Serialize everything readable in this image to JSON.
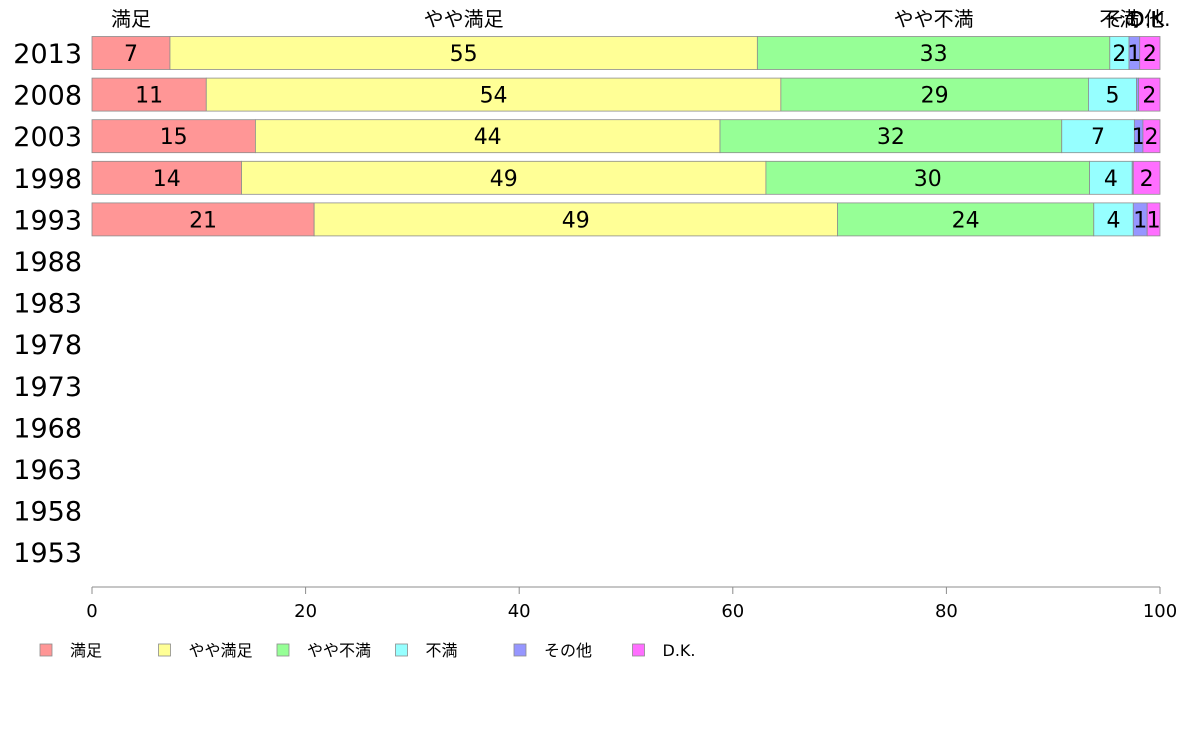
{
  "chart_data": {
    "type": "bar",
    "orientation": "horizontal",
    "stacked": true,
    "title": "",
    "xlabel": "",
    "ylabel": "",
    "xlim": [
      0,
      100
    ],
    "x_ticks": [
      "0",
      "20",
      "40",
      "60",
      "80",
      "100"
    ],
    "categories": [
      "2013",
      "2008",
      "2003",
      "1998",
      "1993",
      "1988",
      "1983",
      "1978",
      "1973",
      "1968",
      "1963",
      "1958",
      "1953"
    ],
    "series": [
      {
        "name": "満足",
        "color": "#ff9696",
        "values": [
          7.3,
          10.7,
          15.3,
          14,
          20.8,
          null,
          null,
          null,
          null,
          null,
          null,
          null,
          null
        ],
        "labels": [
          "7",
          "11",
          "15",
          "14",
          "21",
          "",
          "",
          "",
          "",
          "",
          "",
          "",
          ""
        ]
      },
      {
        "name": "やや満足",
        "color": "#ffff96",
        "values": [
          55,
          53.8,
          43.5,
          49.1,
          49,
          null,
          null,
          null,
          null,
          null,
          null,
          null,
          null
        ],
        "labels": [
          "55",
          "54",
          "44",
          "49",
          "49",
          "",
          "",
          "",
          "",
          "",
          "",
          "",
          ""
        ]
      },
      {
        "name": "やや不満",
        "color": "#96ff96",
        "values": [
          33,
          28.8,
          32,
          30.3,
          24,
          null,
          null,
          null,
          null,
          null,
          null,
          null,
          null
        ],
        "labels": [
          "33",
          "29",
          "32",
          "30",
          "24",
          "",
          "",
          "",
          "",
          "",
          "",
          "",
          ""
        ]
      },
      {
        "name": "不満",
        "color": "#96ffff",
        "values": [
          1.8,
          4.5,
          6.8,
          4,
          3.7,
          null,
          null,
          null,
          null,
          null,
          null,
          null,
          null
        ],
        "labels": [
          "2",
          "5",
          "7",
          "4",
          "4",
          "",
          "",
          "",
          "",
          "",
          "",
          "",
          ""
        ]
      },
      {
        "name": "その他",
        "color": "#9696ff",
        "values": [
          1,
          0.2,
          0.8,
          0.1,
          1.3,
          null,
          null,
          null,
          null,
          null,
          null,
          null,
          null
        ],
        "labels": [
          "1",
          "",
          "1",
          "",
          "1",
          "",
          "",
          "",
          "",
          "",
          "",
          "",
          ""
        ]
      },
      {
        "name": "D.K.",
        "color": "#ff6eff",
        "values": [
          1.9,
          2,
          1.6,
          2.5,
          1.2,
          null,
          null,
          null,
          null,
          null,
          null,
          null,
          null
        ],
        "labels": [
          "2",
          "2",
          "2",
          "2",
          "1",
          "",
          "",
          "",
          "",
          "",
          "",
          "",
          ""
        ]
      }
    ],
    "top_labels": [
      "満足",
      "やや満足",
      "やや不満",
      "不満",
      "その他",
      "D.K."
    ],
    "legend": {
      "position": "bottom",
      "entries": [
        "満足",
        "やや満足",
        "やや不満",
        "不満",
        "その他",
        "D.K."
      ]
    },
    "grid": false
  }
}
